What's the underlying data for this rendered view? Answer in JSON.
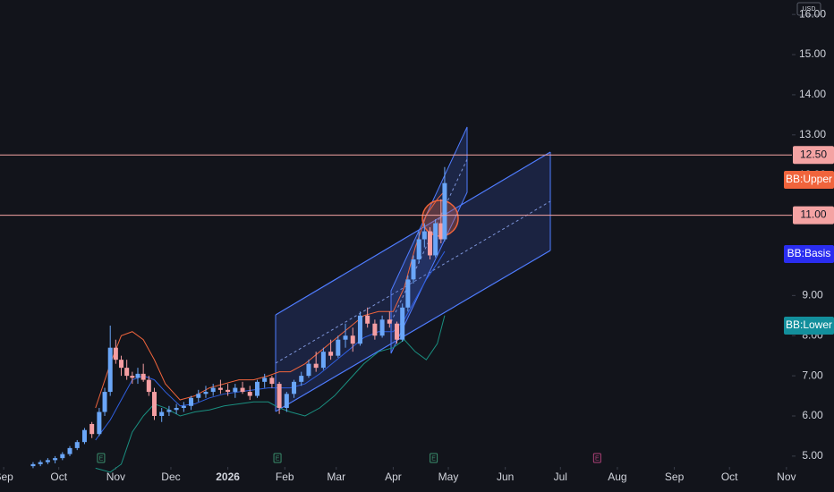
{
  "chart_data": {
    "type": "candlestick",
    "currency": "USD",
    "xlim": [
      -2,
      429
    ],
    "ylim": [
      4.73,
      16.36
    ],
    "xticks": [
      {
        "value": 0,
        "label": "Sep"
      },
      {
        "value": 30,
        "label": "Oct"
      },
      {
        "value": 61,
        "label": "Nov"
      },
      {
        "value": 91,
        "label": "Dec"
      },
      {
        "value": 122,
        "label": "2026"
      },
      {
        "value": 153,
        "label": "Feb"
      },
      {
        "value": 181,
        "label": "Mar"
      },
      {
        "value": 212,
        "label": "Apr"
      },
      {
        "value": 242,
        "label": "May"
      },
      {
        "value": 273,
        "label": "Jun"
      },
      {
        "value": 303,
        "label": "Jul"
      },
      {
        "value": 334,
        "label": "Aug"
      },
      {
        "value": 365,
        "label": "Sep"
      },
      {
        "value": 395,
        "label": "Oct"
      },
      {
        "value": 426,
        "label": "Nov"
      }
    ],
    "yticks": [
      {
        "value": 5,
        "label": "5.00"
      },
      {
        "value": 6,
        "label": "6.00"
      },
      {
        "value": 7,
        "label": "7.00"
      },
      {
        "value": 8,
        "label": "8.00"
      },
      {
        "value": 9,
        "label": "9.00"
      },
      {
        "value": 10,
        "label": "10.00"
      },
      {
        "value": 11,
        "label": "11.00"
      },
      {
        "value": 12,
        "label": "12.00"
      },
      {
        "value": 13,
        "label": "13.00"
      },
      {
        "value": 14,
        "label": "14.00"
      },
      {
        "value": 15,
        "label": "15.00"
      },
      {
        "value": 16,
        "label": "16.00"
      }
    ],
    "up_color": "#6aa6f8",
    "down_color": "#f59ea2",
    "candles": {
      "x": [
        16,
        20,
        24,
        28,
        32,
        36,
        40,
        44,
        48,
        52,
        55,
        58,
        61,
        64,
        67,
        70,
        73,
        76,
        79,
        82,
        86,
        90,
        94,
        98,
        102,
        106,
        110,
        114,
        118,
        122,
        126,
        130,
        134,
        138,
        142,
        146,
        150,
        154,
        158,
        162,
        166,
        170,
        174,
        178,
        182,
        186,
        190,
        194,
        198,
        202,
        206,
        210,
        214,
        217,
        220,
        223,
        226,
        229,
        232,
        235,
        238,
        240
      ],
      "open": [
        4.75,
        4.8,
        4.85,
        4.9,
        4.95,
        5.05,
        5.2,
        5.35,
        5.8,
        5.55,
        6.1,
        6.6,
        7.7,
        7.4,
        7.2,
        7.0,
        6.95,
        7.05,
        6.9,
        6.6,
        6.0,
        6.1,
        6.15,
        6.2,
        6.25,
        6.45,
        6.55,
        6.6,
        6.7,
        6.65,
        6.6,
        6.7,
        6.6,
        6.5,
        6.85,
        6.95,
        6.8,
        6.2,
        6.55,
        6.85,
        7.0,
        7.3,
        7.2,
        7.6,
        7.5,
        7.9,
        8.0,
        7.8,
        8.5,
        8.3,
        8.0,
        8.4,
        8.3,
        7.9,
        8.7,
        9.4,
        9.9,
        10.4,
        10.6,
        10.0,
        10.8,
        10.4
      ],
      "high": [
        4.85,
        4.9,
        4.95,
        5.0,
        5.1,
        5.25,
        5.4,
        5.7,
        5.85,
        6.2,
        6.7,
        8.25,
        7.9,
        7.5,
        7.4,
        7.1,
        7.2,
        7.3,
        7.0,
        6.7,
        6.2,
        6.25,
        6.3,
        6.35,
        6.5,
        6.65,
        6.75,
        6.8,
        6.9,
        6.8,
        6.8,
        6.85,
        6.75,
        6.9,
        7.05,
        7.0,
        6.85,
        6.6,
        6.9,
        7.1,
        7.4,
        7.6,
        7.7,
        7.9,
        8.0,
        8.3,
        8.2,
        8.6,
        8.7,
        8.4,
        8.5,
        8.6,
        8.35,
        8.8,
        9.5,
        10.0,
        10.6,
        10.8,
        10.7,
        10.9,
        11.4,
        12.2
      ],
      "low": [
        4.7,
        4.75,
        4.8,
        4.82,
        4.9,
        5.0,
        5.15,
        5.3,
        5.45,
        5.5,
        6.0,
        6.5,
        7.3,
        7.0,
        6.9,
        6.8,
        6.8,
        6.85,
        6.5,
        5.9,
        5.85,
        6.0,
        6.05,
        6.1,
        6.15,
        6.35,
        6.45,
        6.5,
        6.55,
        6.5,
        6.45,
        6.55,
        6.4,
        6.45,
        6.7,
        6.7,
        6.05,
        6.1,
        6.45,
        6.75,
        6.95,
        7.1,
        7.15,
        7.4,
        7.45,
        7.7,
        7.6,
        7.75,
        8.2,
        7.9,
        7.95,
        8.2,
        7.8,
        7.85,
        8.6,
        9.3,
        9.8,
        10.2,
        9.9,
        9.95,
        10.3,
        10.35
      ],
      "close": [
        4.8,
        4.85,
        4.9,
        4.95,
        5.05,
        5.2,
        5.35,
        5.65,
        5.55,
        6.1,
        6.6,
        7.7,
        7.4,
        7.2,
        7.0,
        6.95,
        7.05,
        6.9,
        6.6,
        6.0,
        6.1,
        6.15,
        6.2,
        6.25,
        6.45,
        6.55,
        6.6,
        6.7,
        6.65,
        6.6,
        6.7,
        6.6,
        6.5,
        6.85,
        6.95,
        6.8,
        6.2,
        6.55,
        6.85,
        7.0,
        7.3,
        7.2,
        7.6,
        7.5,
        7.9,
        8.0,
        7.8,
        8.5,
        8.3,
        8.0,
        8.4,
        8.3,
        7.9,
        8.7,
        9.4,
        9.9,
        10.4,
        10.6,
        10.0,
        10.8,
        10.4,
        11.8
      ]
    },
    "x": [
      50,
      58,
      64,
      70,
      76,
      82,
      88,
      96,
      104,
      112,
      120,
      128,
      136,
      144,
      150,
      156,
      164,
      172,
      180,
      188,
      196,
      204,
      212,
      218,
      224,
      230,
      236,
      240
    ],
    "series": [
      {
        "name": "BB:Upper",
        "color": "#f0643c",
        "label_color": "#f0643c",
        "values": [
          6.2,
          7.3,
          8.0,
          8.1,
          7.9,
          7.4,
          6.8,
          6.4,
          6.5,
          6.7,
          6.8,
          6.9,
          6.9,
          7.0,
          7.1,
          7.1,
          7.3,
          7.6,
          7.9,
          8.2,
          8.5,
          8.6,
          8.6,
          9.2,
          10.2,
          11.0,
          11.4,
          11.6
        ]
      },
      {
        "name": "BB:Basis",
        "color": "#2f5fe0",
        "label_color": "#2a2df0",
        "values": [
          5.4,
          5.9,
          6.4,
          6.9,
          7.0,
          6.9,
          6.6,
          6.25,
          6.3,
          6.45,
          6.55,
          6.6,
          6.65,
          6.7,
          6.7,
          6.7,
          6.8,
          7.05,
          7.35,
          7.65,
          7.95,
          8.1,
          8.1,
          8.4,
          8.9,
          9.4,
          9.8,
          10.1
        ]
      },
      {
        "name": "BB:Lower",
        "color": "#1a8f80",
        "label_color": "#138f9c",
        "values": [
          4.7,
          4.6,
          4.8,
          5.6,
          6.0,
          6.3,
          6.2,
          6.0,
          6.1,
          6.15,
          6.25,
          6.3,
          6.35,
          6.35,
          6.2,
          6.1,
          6.0,
          6.2,
          6.5,
          6.9,
          7.3,
          7.6,
          7.7,
          7.9,
          7.6,
          7.4,
          7.8,
          8.5
        ]
      }
    ],
    "hlines": [
      {
        "value": 12.5,
        "label": "12.50",
        "color": "#f4a3a3"
      },
      {
        "value": 11,
        "label": "11.00",
        "color": "#f4a3a3"
      }
    ],
    "events": [
      {
        "x": 53,
        "label": "E",
        "color": "#3b8f6e"
      },
      {
        "x": 149,
        "label": "E",
        "color": "#3b8f6e"
      },
      {
        "x": 234,
        "label": "E",
        "color": "#3b8f6e"
      },
      {
        "x": 323,
        "label": "E",
        "color": "#b0427a"
      }
    ]
  }
}
